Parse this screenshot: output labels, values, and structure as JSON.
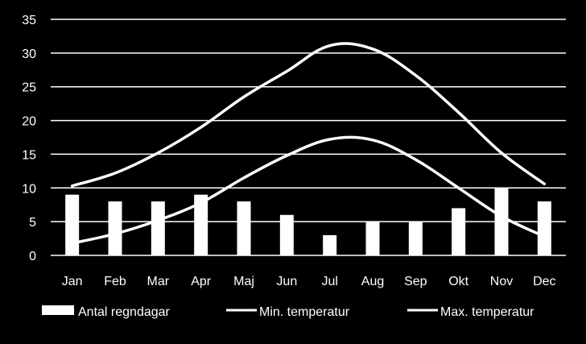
{
  "chart_data": {
    "type": "bar",
    "categories": [
      "Jan",
      "Feb",
      "Mar",
      "Apr",
      "Maj",
      "Jun",
      "Jul",
      "Aug",
      "Sep",
      "Okt",
      "Nov",
      "Dec"
    ],
    "ylim": [
      0,
      35
    ],
    "yticks": [
      0,
      5,
      10,
      15,
      20,
      25,
      30,
      35
    ],
    "grid": true,
    "legend_position": "bottom",
    "colors": {
      "background": "#000000",
      "foreground": "#ffffff"
    },
    "series": [
      {
        "name": "Antal regndagar",
        "type": "bar",
        "values": [
          9,
          8,
          8,
          9,
          8,
          6,
          3,
          5,
          5,
          7,
          10,
          8
        ]
      },
      {
        "name": "Min. temperatur",
        "type": "line",
        "values": [
          1.8,
          3.2,
          5.2,
          7.8,
          11.5,
          14.8,
          17.2,
          17.1,
          14.2,
          10.0,
          5.8,
          2.8
        ]
      },
      {
        "name": "Max. temperatur",
        "type": "line",
        "values": [
          10.3,
          12.2,
          15.2,
          19.0,
          23.5,
          27.3,
          31.1,
          30.6,
          26.7,
          21.2,
          15.2,
          10.6
        ]
      }
    ]
  }
}
